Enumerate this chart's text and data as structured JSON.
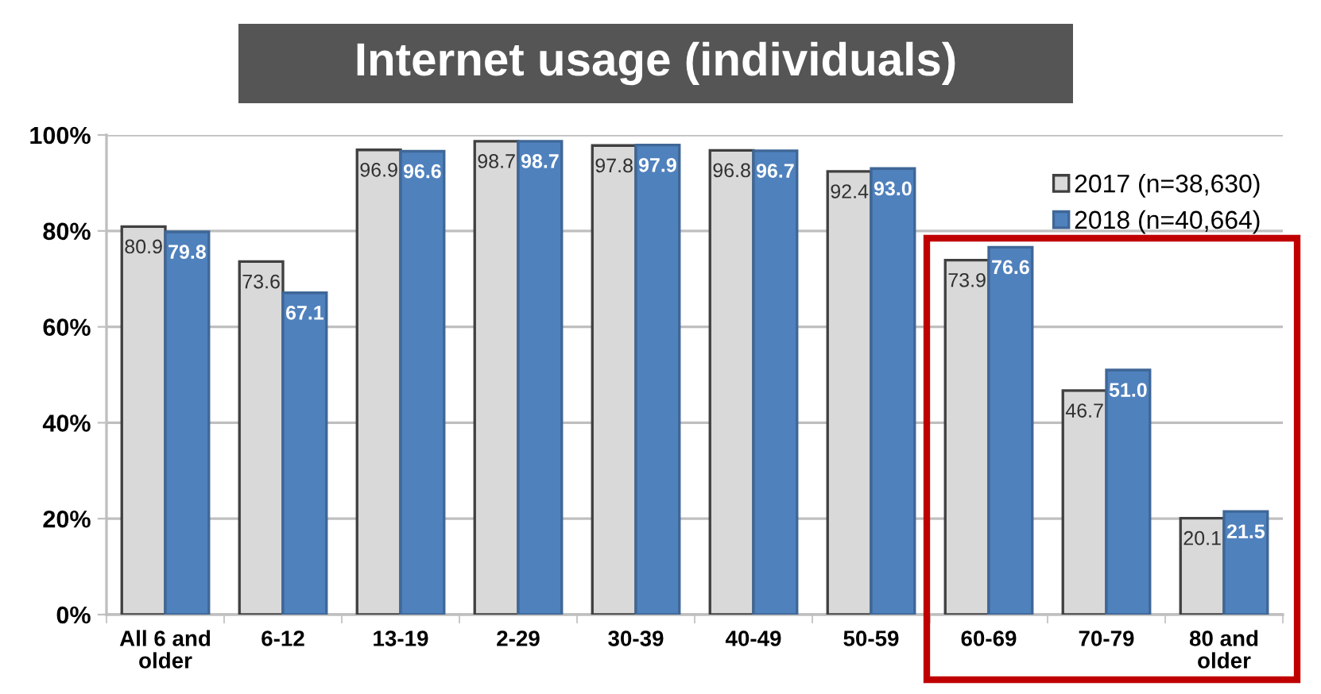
{
  "chart_data": {
    "type": "bar",
    "title": "Internet usage (individuals)",
    "categories": [
      "All 6 and\nolder",
      "6-12",
      "13-19",
      "2-29",
      "30-39",
      "40-49",
      "50-59",
      "60-69",
      "70-79",
      "80 and\nolder"
    ],
    "series": [
      {
        "name": "2017 (n=38,630)",
        "color": "#d9d9d9",
        "values": [
          80.9,
          73.6,
          96.9,
          98.7,
          97.8,
          96.8,
          92.4,
          73.9,
          46.7,
          20.1
        ],
        "value_labels": [
          "80.9",
          "73.6",
          "96.9",
          "98.7",
          "97.8",
          "96.8",
          "92.4",
          "73.9",
          "46.7",
          "20.1"
        ]
      },
      {
        "name": "2018 (n=40,664)",
        "color": "#4f81bd",
        "values": [
          79.8,
          67.1,
          96.6,
          98.7,
          97.9,
          96.7,
          93.0,
          76.6,
          51.0,
          21.5
        ],
        "value_labels": [
          "79.8",
          "67.1",
          "96.6",
          "98.7",
          "97.9",
          "96.7",
          "93.0",
          "76.6",
          "51.0",
          "21.5"
        ]
      }
    ],
    "ylim": [
      0,
      100
    ],
    "yticks": [
      {
        "value": 0,
        "label": "0%"
      },
      {
        "value": 20,
        "label": "20%"
      },
      {
        "value": 40,
        "label": "40%"
      },
      {
        "value": 60,
        "label": "60%"
      },
      {
        "value": 80,
        "label": "80%"
      },
      {
        "value": 100,
        "label": "100%"
      }
    ],
    "grid": "y",
    "legend": "top right"
  }
}
